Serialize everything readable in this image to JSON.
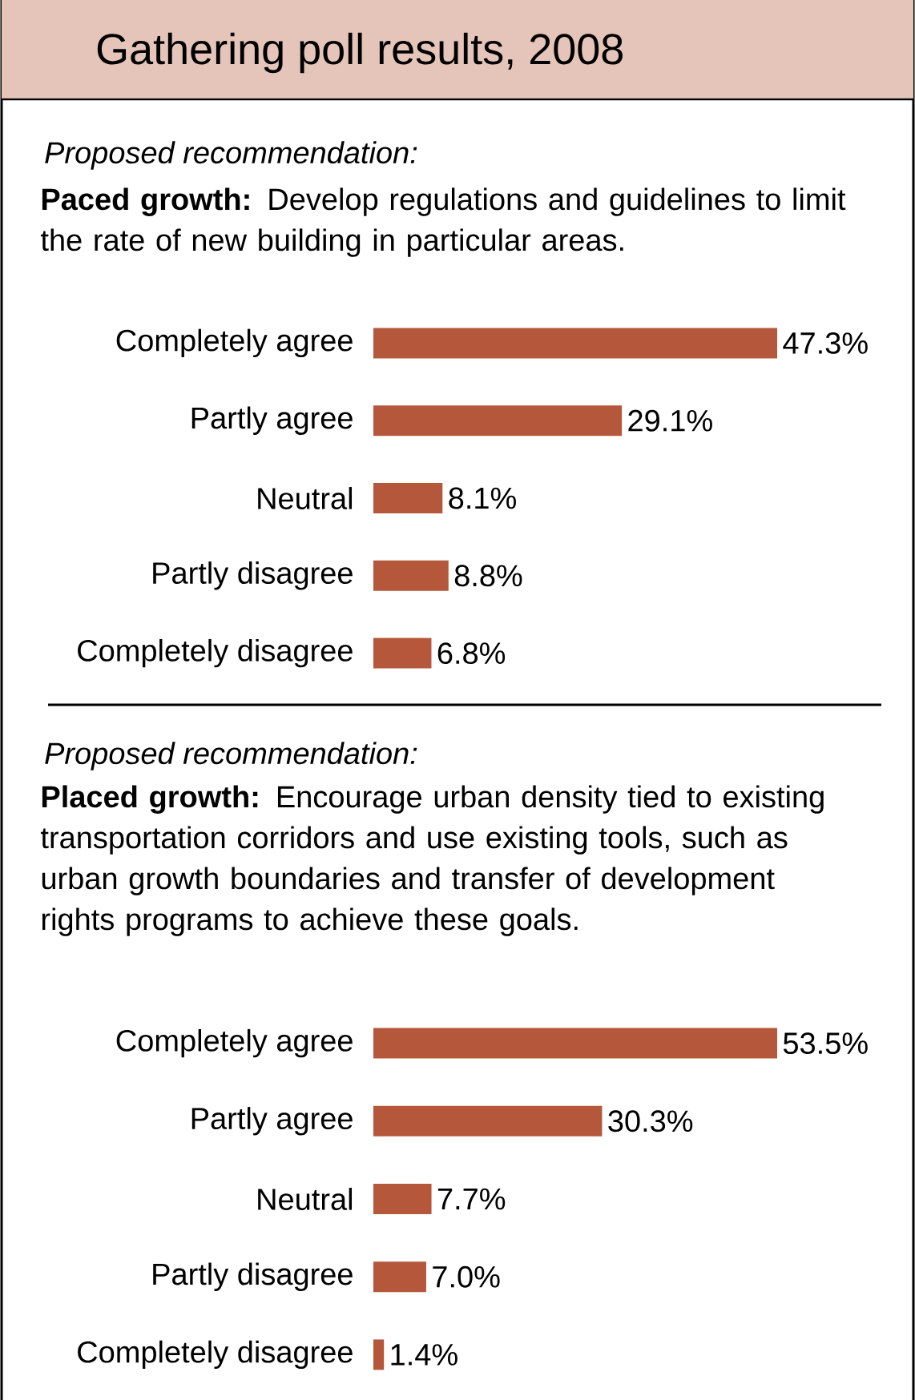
{
  "chart_data": [
    {
      "type": "bar",
      "orientation": "horizontal",
      "title": "Gathering poll results, 2008",
      "subtitle": "Proposed recommendation:",
      "annotations": [
        "**Paced growth:** Develop regulations and guidelines to limit the rate of new building in particular areas."
      ],
      "categories": [
        "Completely agree",
        "Partly agree",
        "Neutral",
        "Partly disagree",
        "Completely disagree"
      ],
      "values": [
        47.3,
        29.1,
        8.1,
        8.8,
        6.8
      ],
      "value_labels": [
        "47.3%",
        "29.1%",
        "8.1%",
        "8.8%",
        "6.8%"
      ],
      "color": "#b5573a"
    },
    {
      "type": "bar",
      "orientation": "horizontal",
      "subtitle": "Proposed recommendation:",
      "annotations": [
        "**Placed growth:** Encourage urban density tied to existing transportation corridors and use existing tools, such as urban growth boundaries and transfer of development rights programs to achieve these goals."
      ],
      "categories": [
        "Completely agree",
        "Partly agree",
        "Neutral",
        "Partly disagree",
        "Completely disagree"
      ],
      "values": [
        53.5,
        30.3,
        7.7,
        7.0,
        1.4
      ],
      "value_labels": [
        "53.5%",
        "30.3%",
        "7.7%",
        "7.0%",
        "1.4%"
      ],
      "color": "#b5573a"
    }
  ]
}
